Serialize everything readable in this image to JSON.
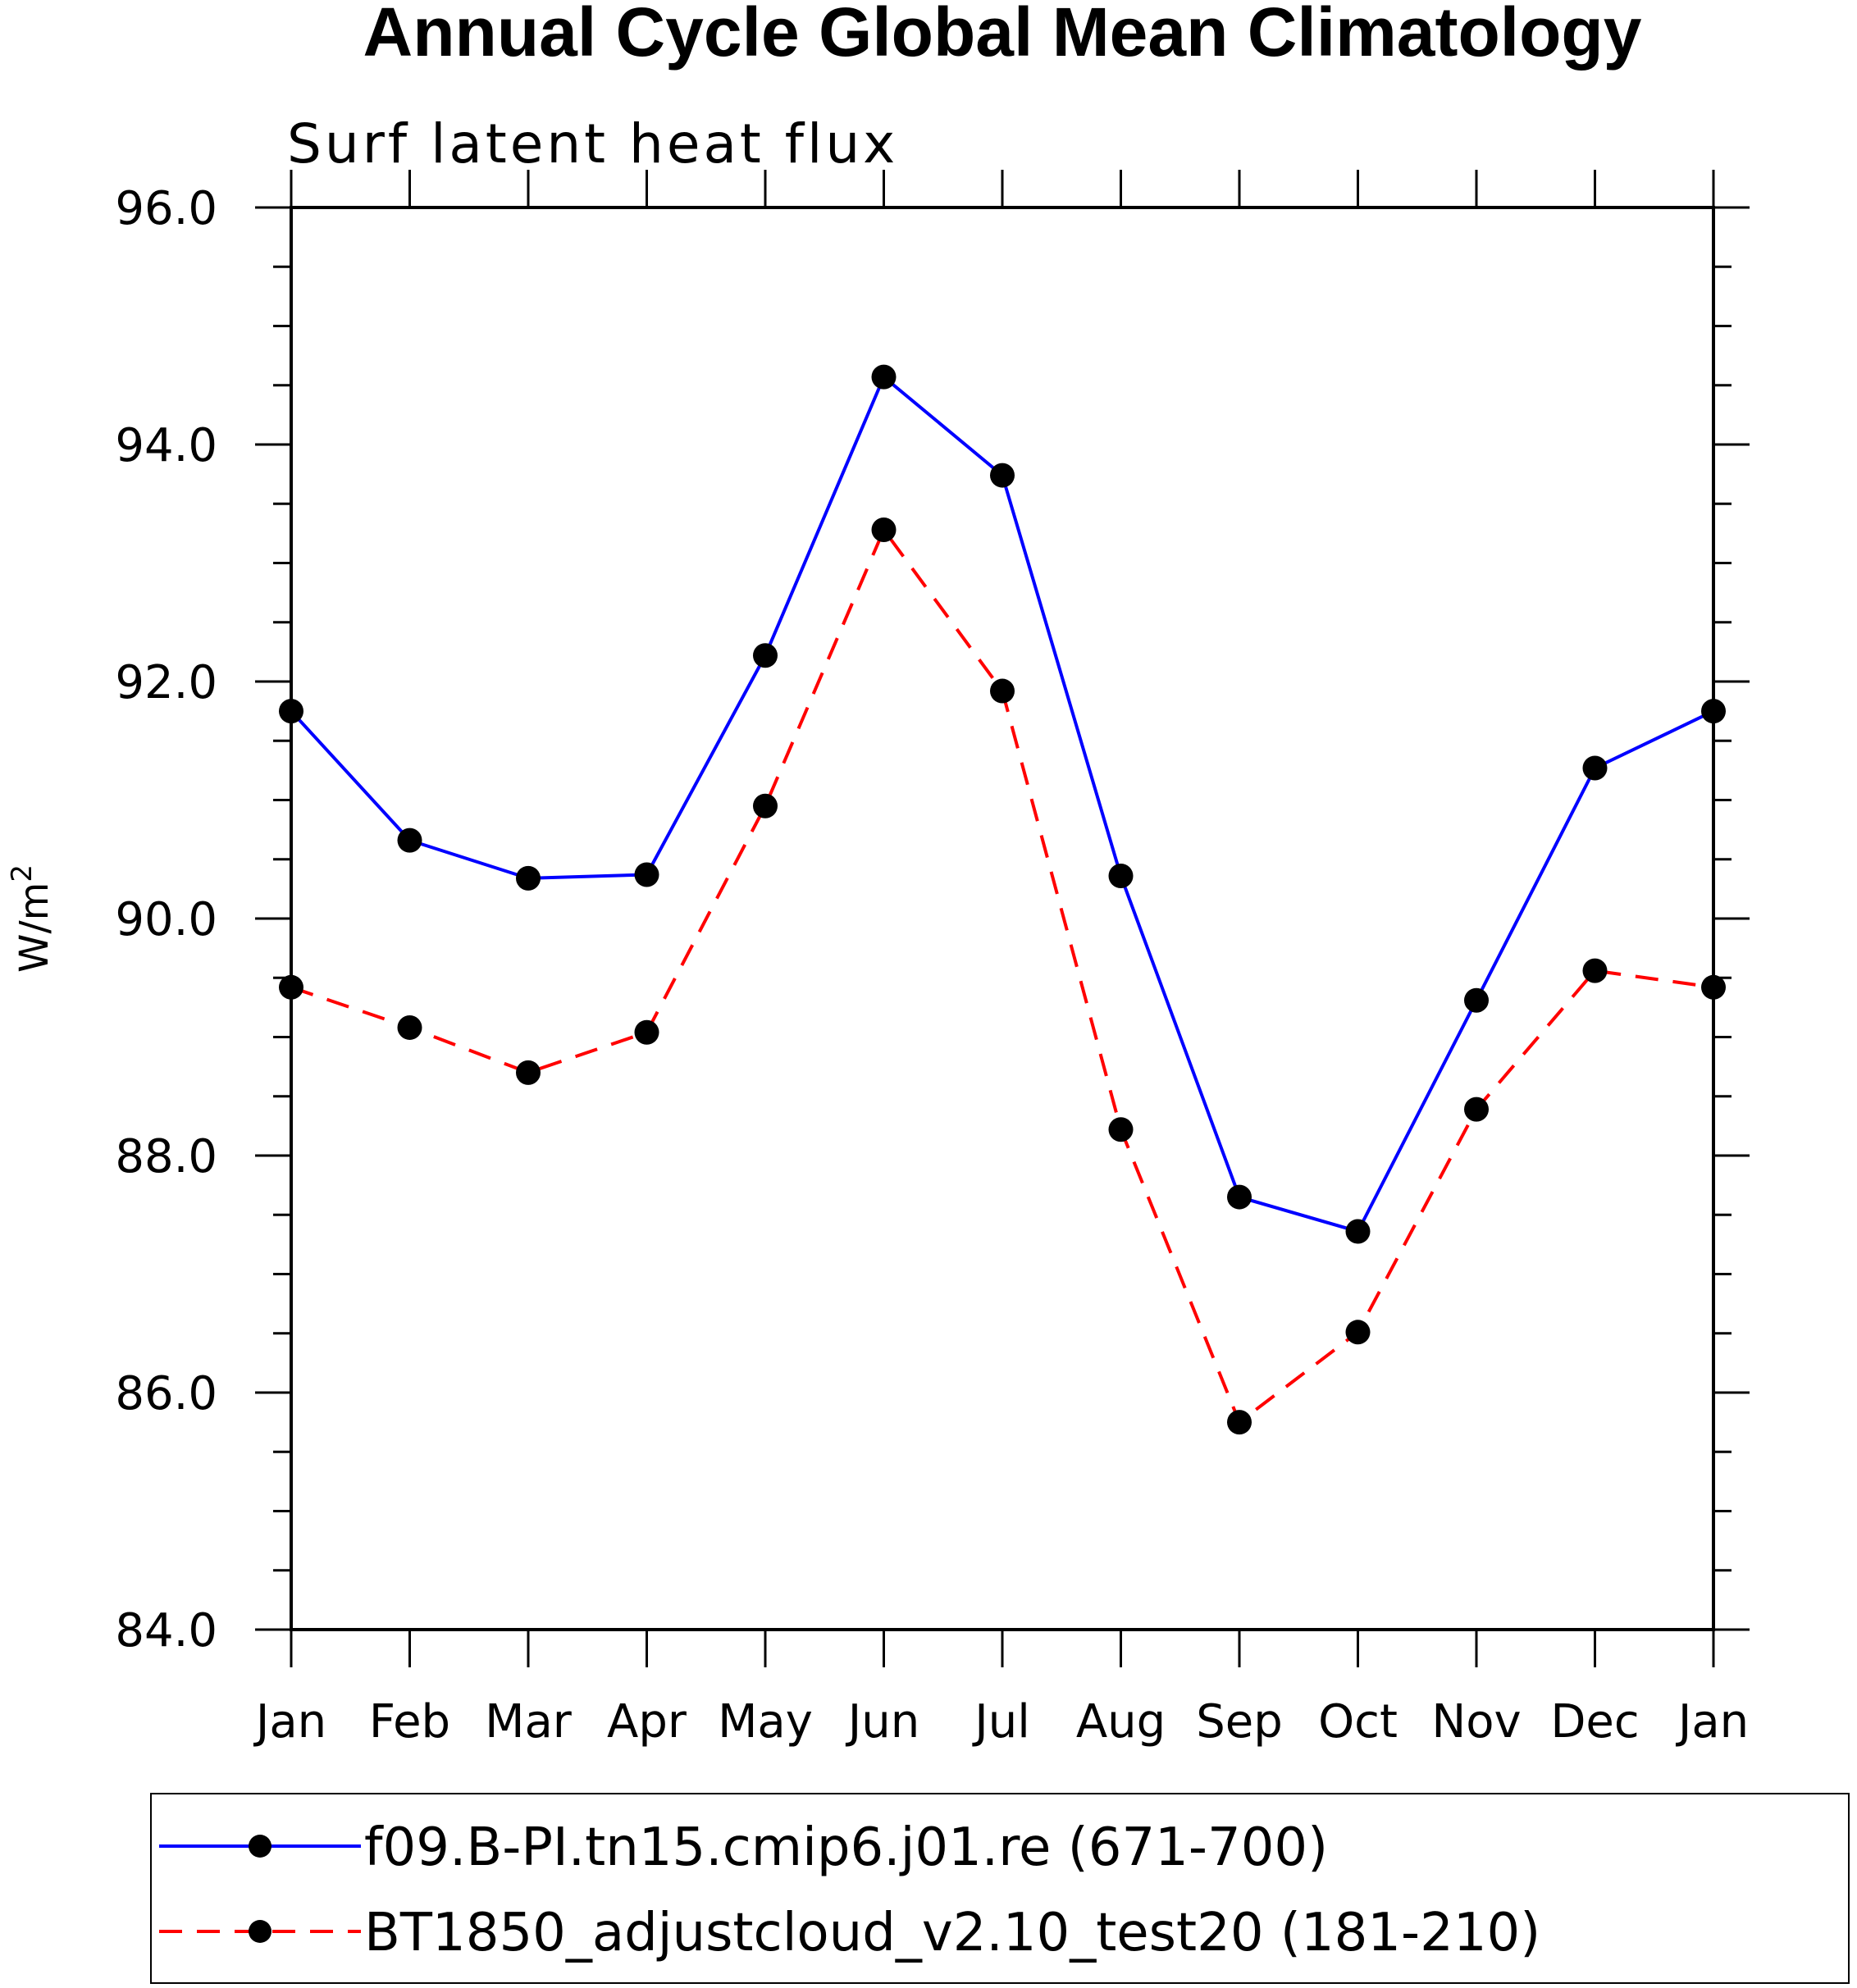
{
  "chart_data": {
    "type": "line",
    "title": "Annual Cycle Global Mean Climatology",
    "subtitle": "Surf latent heat flux",
    "ylabel": "W/m",
    "ylabel_sup": "2",
    "categories": [
      "Jan",
      "Feb",
      "Mar",
      "Apr",
      "May",
      "Jun",
      "Jul",
      "Aug",
      "Sep",
      "Oct",
      "Nov",
      "Dec",
      "Jan"
    ],
    "ylim": [
      84.0,
      96.0
    ],
    "yticks": [
      "84.0",
      "86.0",
      "88.0",
      "90.0",
      "92.0",
      "94.0",
      "96.0"
    ],
    "series": [
      {
        "name": "f09.B-PI.tn15.cmip6.j01.re (671-700)",
        "color": "#0000ff",
        "dash": "solid",
        "values": [
          91.75,
          90.66,
          90.34,
          90.37,
          92.22,
          94.57,
          93.74,
          90.36,
          87.65,
          87.36,
          89.31,
          91.27,
          91.75
        ]
      },
      {
        "name": "BT1850_adjustcloud_v2.10_test20 (181-210)",
        "color": "#ff0000",
        "dash": "dashed",
        "values": [
          89.42,
          89.08,
          88.7,
          89.04,
          90.95,
          93.28,
          91.92,
          88.22,
          85.75,
          86.51,
          88.39,
          89.56,
          89.42
        ]
      }
    ],
    "grid": false,
    "legend_position": "bottom"
  }
}
